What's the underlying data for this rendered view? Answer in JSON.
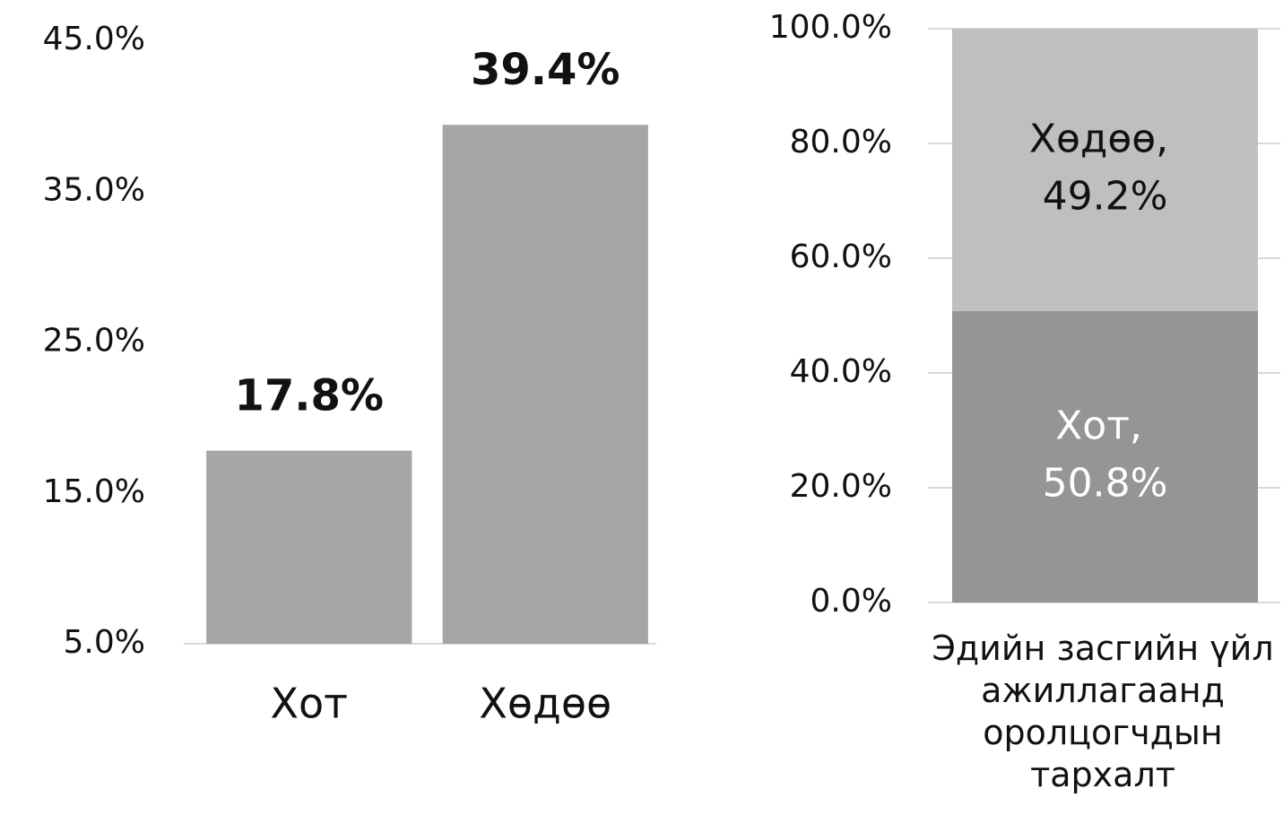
{
  "chart_data": [
    {
      "type": "bar",
      "categories": [
        "Хот",
        "Хөдөө"
      ],
      "values": [
        17.8,
        39.4
      ],
      "value_labels": [
        "17.8%",
        "39.4%"
      ],
      "color": "#a6a6a6",
      "ylim": [
        5,
        45
      ],
      "yticks": [
        {
          "value": 5,
          "label": "5.0%"
        },
        {
          "value": 15,
          "label": "15.0%"
        },
        {
          "value": 25,
          "label": "25.0%"
        },
        {
          "value": 35,
          "label": "35.0%"
        },
        {
          "value": 45,
          "label": "45.0%"
        }
      ],
      "grid": false
    },
    {
      "type": "stacked_bar",
      "categories": [
        "Эдийн засгийн үйл ажиллагаанд оролцогчдын тархалт"
      ],
      "series": [
        {
          "name": "Хот",
          "color": "#959595",
          "values": [
            50.8
          ],
          "value_labels": [
            "Хот, 50.8%"
          ]
        },
        {
          "name": "Хөдөө",
          "color": "#bfbfbf",
          "values": [
            49.2
          ],
          "value_labels": [
            "Хөдөө, 49.2%"
          ]
        }
      ],
      "ylim": [
        0,
        100
      ],
      "yticks": [
        {
          "value": 0,
          "label": "0.0%"
        },
        {
          "value": 20,
          "label": "20.0%"
        },
        {
          "value": 40,
          "label": "40.0%"
        },
        {
          "value": 60,
          "label": "60.0%"
        },
        {
          "value": 80,
          "label": "80.0%"
        },
        {
          "value": 100,
          "label": "100.0%"
        }
      ],
      "grid": true
    }
  ]
}
